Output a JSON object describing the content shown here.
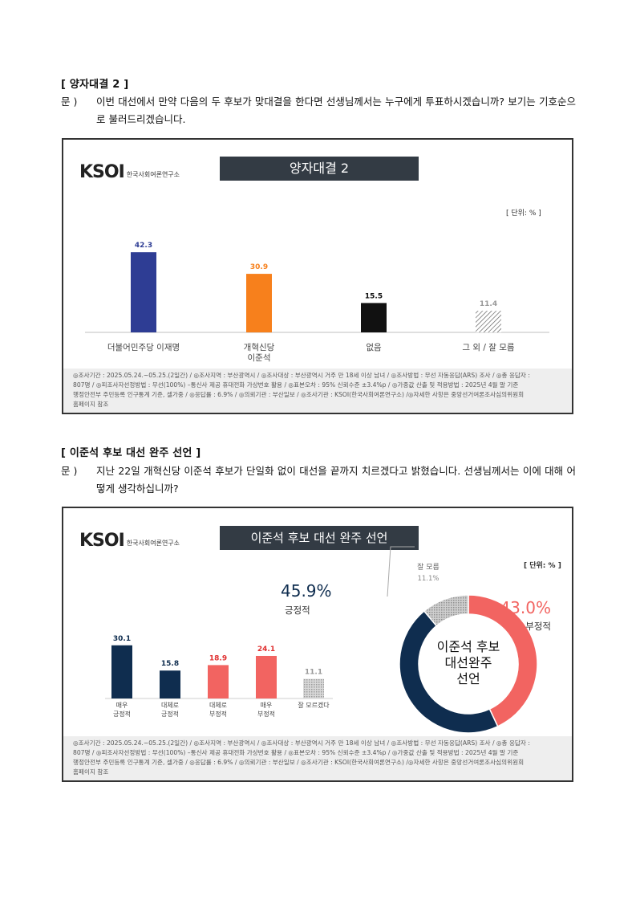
{
  "section1": {
    "title": "[ 양자대결 2 ]",
    "q_label": "문 )",
    "question": "이번 대선에서 만약 다음의 두 후보가 맞대결을 한다면 선생님께서는 누구에게 투표하시겠습니까? 보기는 기호순으로 불러드리겠습니다.",
    "card": {
      "logo_text": "KSOI",
      "logo_org": "한국사회여론연구소",
      "banner": "양자대결 2",
      "unit": "[ 단위: % ]"
    }
  },
  "section2": {
    "title": "[ 이준석 후보 대선 완주 선언 ]",
    "q_label": "문 )",
    "question": "지난 22일 개혁신당 이준석 후보가 단일화 없이 대선을 끝까지 치르겠다고 밝혔습니다. 선생님께서는 이에 대해 어떻게 생각하십니까?",
    "card": {
      "logo_text": "KSOI",
      "logo_org": "한국사회여론연구소",
      "banner": "이준석 후보 대선 완주 선언",
      "unit": "[ 단위: % ]",
      "donut_center": [
        "이준석 후보",
        "대선완주",
        "선언"
      ],
      "positive": {
        "value": "45.9%",
        "label": "긍정적"
      },
      "negative": {
        "value": "43.0%",
        "label": "부정적"
      },
      "unknown": {
        "value": "11.1%",
        "label": "잘 모름"
      }
    }
  },
  "footer": {
    "line1": "◎조사기간 : 2025.05.24.~05.25.(2일간) / ◎조사지역 : 부산광역시 / ◎조사대상 : 부산광역시 거주 만 18세 이상 남녀 / ◎조사방법 : 무선 자동응답(ARS) 조사 / ◎총 응답자 :",
    "line2": "807명 / ◎피조사자선정방법 : 무선(100%) –통신사 제공 휴대전화 가상번호 활용 / ◎표본오차 : 95% 신뢰수준 ±3.4%p / ◎가중값 산출 및 적용방법 : 2025년 4월 말 기준",
    "line3": "행정안전부 주민등록 인구통계 기준, 셀가중 / ◎응답률 : 6.9% / ◎의뢰기관 : 부산일보 / ◎조사기관 : KSOI(한국사회여론연구소) /◎자세한 사항은 중앙선거여론조사심의위원회",
    "line4": "홈페이지 참조"
  },
  "chart_data": [
    {
      "type": "bar",
      "title": "양자대결 2",
      "unit": "[ 단위: % ]",
      "categories": [
        "더불어민주당 이재명",
        "개혁신당 이준석",
        "없음",
        "그 외 / 잘 모름"
      ],
      "category_lines": [
        [
          "더불어민주당 이재명"
        ],
        [
          "개혁신당",
          "이준석"
        ],
        [
          "없음"
        ],
        [
          "그 외 / 잘 모름"
        ]
      ],
      "values": [
        42.3,
        30.9,
        15.5,
        11.4
      ],
      "labels": [
        "42.3",
        "30.9",
        "15.5",
        "11.4"
      ],
      "colors": [
        "#2e3d94",
        "#f7801c",
        "#111111",
        "hatch"
      ],
      "label_colors": [
        "#2e3d94",
        "#f7801c",
        "#111111",
        "#999999"
      ]
    },
    {
      "type": "bar",
      "title": "이준석 후보 대선 완주 선언",
      "categories": [
        "매우 긍정적",
        "대체로 긍정적",
        "대체로 부정적",
        "매우 부정적",
        "잘 모르겠다"
      ],
      "category_lines": [
        [
          "매우",
          "긍정적"
        ],
        [
          "대체로",
          "긍정적"
        ],
        [
          "대체로",
          "부정적"
        ],
        [
          "매우",
          "부정적"
        ],
        [
          "잘 모르겠다"
        ]
      ],
      "values": [
        30.1,
        15.8,
        18.9,
        24.1,
        11.1
      ],
      "labels": [
        "30.1",
        "15.8",
        "18.9",
        "24.1",
        "11.1"
      ],
      "colors": [
        "#0f2d4f",
        "#0f2d4f",
        "#f26461",
        "#f26461",
        "dots"
      ],
      "label_colors": [
        "#0f2d4f",
        "#0f2d4f",
        "#e03030",
        "#e03030",
        "#999999"
      ]
    },
    {
      "type": "pie",
      "title": "이준석 후보 대선 완주 선언",
      "categories": [
        "부정적",
        "긍정적",
        "잘 모름"
      ],
      "values": [
        43.0,
        45.9,
        11.1
      ],
      "colors": [
        "#f26461",
        "#0f2d4f",
        "#b8b8b8"
      ]
    }
  ]
}
